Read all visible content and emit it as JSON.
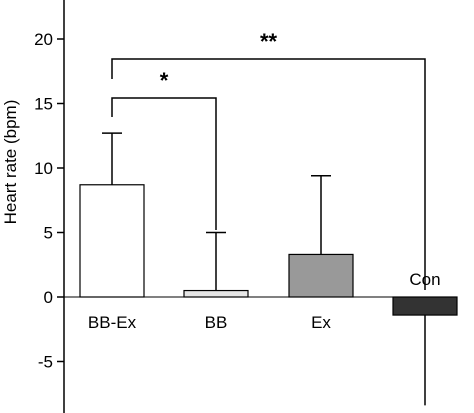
{
  "chart_data": {
    "type": "bar",
    "ylabel": "Heart rate (bpm)",
    "ylim": [
      -7,
      23
    ],
    "y_ticks": [
      -5,
      0,
      5,
      10,
      15,
      20
    ],
    "categories": [
      "BB-Ex",
      "BB",
      "Ex",
      ""
    ],
    "values": [
      8.7,
      0.5,
      3.3,
      -1.4
    ],
    "error_bars": [
      4.0,
      4.5,
      6.1,
      7
    ],
    "bar_colors": [
      "#ffffff",
      "#e6e6e6",
      "#999999",
      "#333333"
    ],
    "inline_labels": [
      "",
      "",
      "",
      "Con"
    ],
    "significance": [
      {
        "from": "BB-Ex",
        "to": "BB",
        "label": "*"
      },
      {
        "from": "BB-Ex",
        "to": "Con",
        "label": "**"
      }
    ],
    "grid": false
  }
}
